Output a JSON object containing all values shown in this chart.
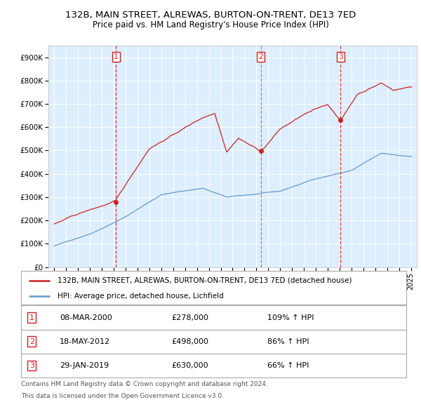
{
  "title": "132B, MAIN STREET, ALREWAS, BURTON-ON-TRENT, DE13 7ED",
  "subtitle": "Price paid vs. HM Land Registry's House Price Index (HPI)",
  "legend_line1": "132B, MAIN STREET, ALREWAS, BURTON-ON-TRENT, DE13 7ED (detached house)",
  "legend_line2": "HPI: Average price, detached house, Lichfield",
  "footer1": "Contains HM Land Registry data © Crown copyright and database right 2024.",
  "footer2": "This data is licensed under the Open Government Licence v3.0.",
  "sales": [
    {
      "num": 1,
      "date": "08-MAR-2000",
      "price": 278000,
      "pct": "109%",
      "direction": "↑"
    },
    {
      "num": 2,
      "date": "18-MAY-2012",
      "price": 498000,
      "pct": "86%",
      "direction": "↑"
    },
    {
      "num": 3,
      "date": "29-JAN-2019",
      "price": 630000,
      "pct": "66%",
      "direction": "↑"
    }
  ],
  "sale_dates_decimal": [
    2000.19,
    2012.38,
    2019.08
  ],
  "red_color": "#cc2222",
  "blue_color": "#6699cc",
  "bg_color": "#ddeeff",
  "grid_color": "#ffffff",
  "ylim": [
    0,
    950000
  ],
  "yticks": [
    0,
    100000,
    200000,
    300000,
    400000,
    500000,
    600000,
    700000,
    800000,
    900000
  ],
  "ytick_labels": [
    "£0",
    "£100K",
    "£200K",
    "£300K",
    "£400K",
    "£500K",
    "£600K",
    "£700K",
    "£800K",
    "£900K"
  ],
  "xlim_start": 1994.5,
  "xlim_end": 2025.5,
  "table_data": [
    [
      "1",
      "08-MAR-2000",
      "£278,000",
      "109% ↑ HPI"
    ],
    [
      "2",
      "18-MAY-2012",
      "£498,000",
      "86% ↑ HPI"
    ],
    [
      "3",
      "29-JAN-2019",
      "£630,000",
      "66% ↑ HPI"
    ]
  ]
}
